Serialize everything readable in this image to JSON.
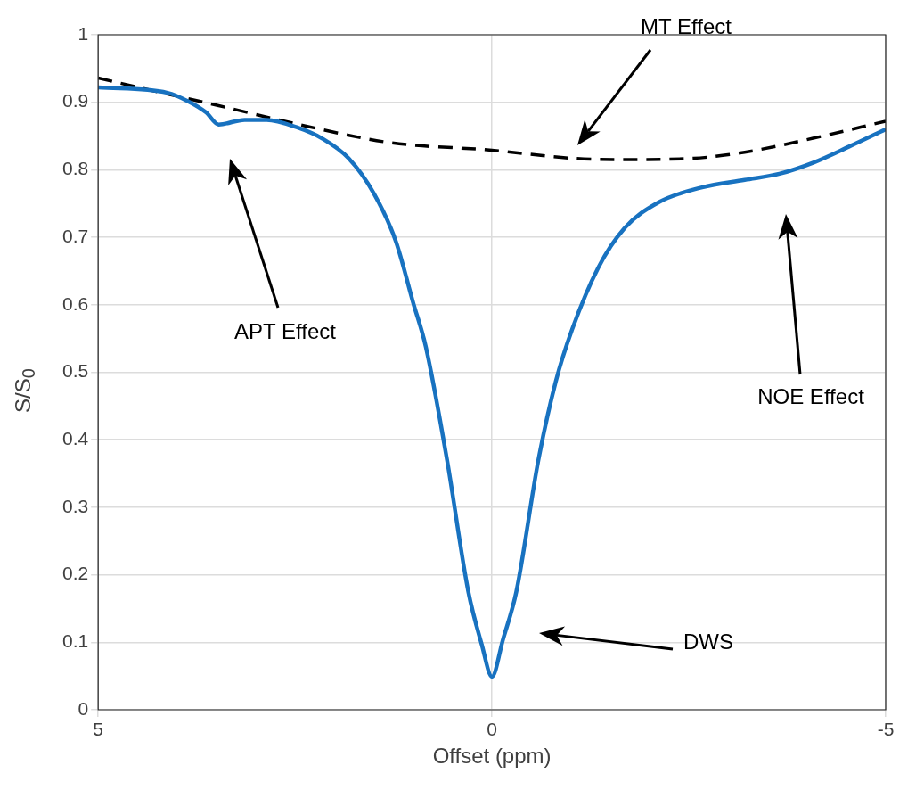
{
  "chart_data": {
    "type": "line",
    "xlabel": "Offset (ppm)",
    "ylabel": "S/S$_{0}$",
    "xlim": [
      5,
      -5
    ],
    "xticks": [
      5,
      0,
      -5
    ],
    "ylim": [
      0,
      1
    ],
    "yticks": [
      0,
      0.1,
      0.2,
      0.3,
      0.4,
      0.5,
      0.6,
      0.7,
      0.8,
      0.9,
      1
    ],
    "grid": true,
    "marker": "none",
    "series": [
      {
        "color": "#1872c0",
        "line_style": "solid",
        "x": [
          5,
          4.12,
          3.85,
          3.63,
          3.47,
          3.14,
          2.86,
          2.48,
          2.15,
          1.82,
          1.5,
          1.22,
          1.0,
          0.84,
          0.57,
          0.3,
          0.13,
          0,
          -0.14,
          -0.31,
          -0.59,
          -0.81,
          -1.02,
          -1.35,
          -1.68,
          -2.12,
          -2.67,
          -3.21,
          -3.65,
          -4.09,
          -4.53,
          -5
        ],
        "values": [
          0.922,
          0.914,
          0.901,
          0.885,
          0.867,
          0.874,
          0.874,
          0.863,
          0.846,
          0.817,
          0.765,
          0.694,
          0.603,
          0.538,
          0.37,
          0.175,
          0.097,
          0.049,
          0.104,
          0.175,
          0.37,
          0.486,
          0.564,
          0.655,
          0.713,
          0.752,
          0.774,
          0.785,
          0.794,
          0.811,
          0.834,
          0.86
        ]
      },
      {
        "color": "#000000",
        "line_style": "dashed",
        "x": [
          5,
          4.45,
          3.47,
          2.37,
          1.28,
          0,
          -1.02,
          -1.68,
          -2.56,
          -3.21,
          -4.09,
          -5
        ],
        "values": [
          0.936,
          0.921,
          0.895,
          0.865,
          0.84,
          0.829,
          0.817,
          0.815,
          0.817,
          0.826,
          0.847,
          0.872
        ]
      }
    ],
    "annotations": [
      "MT Effect",
      "APT Effect",
      "NOE Effect",
      "DWS"
    ]
  }
}
